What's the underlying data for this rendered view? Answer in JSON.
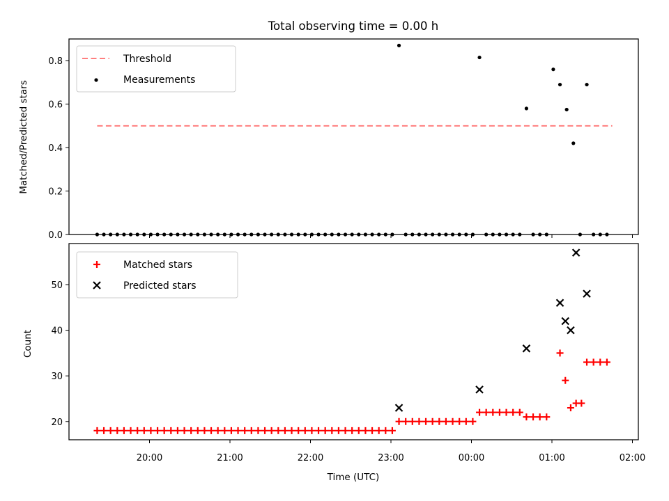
{
  "chart_data": {
    "title": "Total observing time = 0.00 h",
    "xlabel": "Time (UTC)",
    "x_tick_labels": [
      "20:00",
      "21:00",
      "22:00",
      "23:00",
      "00:00",
      "01:00",
      "02:00"
    ],
    "top": {
      "type": "scatter",
      "ylabel": "Matched/Predicted stars",
      "ylim": [
        0,
        0.9
      ],
      "y_ticks": [
        "0.0",
        "0.2",
        "0.4",
        "0.6",
        "0.8"
      ],
      "legend_position": "top-left",
      "threshold": {
        "label": "Threshold",
        "value": 0.5,
        "x_start": "19:21",
        "x_end": "01:45",
        "color": "#ff7f7f"
      },
      "measurements": {
        "label": "Measurements",
        "color": "#000000",
        "points": [
          [
            "19:21",
            0
          ],
          [
            "19:26",
            0
          ],
          [
            "19:31",
            0
          ],
          [
            "19:36",
            0
          ],
          [
            "19:41",
            0
          ],
          [
            "19:46",
            0
          ],
          [
            "19:51",
            0
          ],
          [
            "19:56",
            0
          ],
          [
            "20:01",
            0
          ],
          [
            "20:06",
            0
          ],
          [
            "20:11",
            0
          ],
          [
            "20:16",
            0
          ],
          [
            "20:21",
            0
          ],
          [
            "20:26",
            0
          ],
          [
            "20:31",
            0
          ],
          [
            "20:36",
            0
          ],
          [
            "20:41",
            0
          ],
          [
            "20:46",
            0
          ],
          [
            "20:51",
            0
          ],
          [
            "20:56",
            0
          ],
          [
            "21:01",
            0
          ],
          [
            "21:06",
            0
          ],
          [
            "21:11",
            0
          ],
          [
            "21:16",
            0
          ],
          [
            "21:21",
            0
          ],
          [
            "21:26",
            0
          ],
          [
            "21:31",
            0
          ],
          [
            "21:36",
            0
          ],
          [
            "21:41",
            0
          ],
          [
            "21:46",
            0
          ],
          [
            "21:51",
            0
          ],
          [
            "21:56",
            0
          ],
          [
            "22:01",
            0
          ],
          [
            "22:06",
            0
          ],
          [
            "22:11",
            0
          ],
          [
            "22:16",
            0
          ],
          [
            "22:21",
            0
          ],
          [
            "22:26",
            0
          ],
          [
            "22:31",
            0
          ],
          [
            "22:36",
            0
          ],
          [
            "22:41",
            0
          ],
          [
            "22:46",
            0
          ],
          [
            "22:51",
            0
          ],
          [
            "22:56",
            0
          ],
          [
            "23:01",
            0
          ],
          [
            "23:06",
            0.87
          ],
          [
            "23:11",
            0
          ],
          [
            "23:16",
            0
          ],
          [
            "23:21",
            0
          ],
          [
            "23:26",
            0
          ],
          [
            "23:31",
            0
          ],
          [
            "23:36",
            0
          ],
          [
            "23:41",
            0
          ],
          [
            "23:46",
            0
          ],
          [
            "23:51",
            0
          ],
          [
            "23:56",
            0
          ],
          [
            "00:01",
            0
          ],
          [
            "00:06",
            0.815
          ],
          [
            "00:11",
            0
          ],
          [
            "00:16",
            0
          ],
          [
            "00:21",
            0
          ],
          [
            "00:26",
            0
          ],
          [
            "00:31",
            0
          ],
          [
            "00:36",
            0
          ],
          [
            "00:41",
            0.58
          ],
          [
            "00:46",
            0
          ],
          [
            "00:51",
            0
          ],
          [
            "00:56",
            0
          ],
          [
            "01:01",
            0.76
          ],
          [
            "01:06",
            0.69
          ],
          [
            "01:11",
            0.575
          ],
          [
            "01:16",
            0.42
          ],
          [
            "01:21",
            0
          ],
          [
            "01:26",
            0.69
          ],
          [
            "01:31",
            0
          ],
          [
            "01:36",
            0
          ],
          [
            "01:41",
            0
          ]
        ]
      }
    },
    "bottom": {
      "type": "scatter",
      "ylabel": "Count",
      "ylim": [
        16,
        59
      ],
      "y_ticks": [
        "20",
        "30",
        "40",
        "50"
      ],
      "legend_position": "top-left",
      "matched": {
        "label": "Matched stars",
        "color": "#ff0000",
        "points": [
          [
            "19:21",
            18
          ],
          [
            "19:26",
            18
          ],
          [
            "19:31",
            18
          ],
          [
            "19:36",
            18
          ],
          [
            "19:41",
            18
          ],
          [
            "19:46",
            18
          ],
          [
            "19:51",
            18
          ],
          [
            "19:56",
            18
          ],
          [
            "20:01",
            18
          ],
          [
            "20:06",
            18
          ],
          [
            "20:11",
            18
          ],
          [
            "20:16",
            18
          ],
          [
            "20:21",
            18
          ],
          [
            "20:26",
            18
          ],
          [
            "20:31",
            18
          ],
          [
            "20:36",
            18
          ],
          [
            "20:41",
            18
          ],
          [
            "20:46",
            18
          ],
          [
            "20:51",
            18
          ],
          [
            "20:56",
            18
          ],
          [
            "21:01",
            18
          ],
          [
            "21:06",
            18
          ],
          [
            "21:11",
            18
          ],
          [
            "21:16",
            18
          ],
          [
            "21:21",
            18
          ],
          [
            "21:26",
            18
          ],
          [
            "21:31",
            18
          ],
          [
            "21:36",
            18
          ],
          [
            "21:41",
            18
          ],
          [
            "21:46",
            18
          ],
          [
            "21:51",
            18
          ],
          [
            "21:56",
            18
          ],
          [
            "22:01",
            18
          ],
          [
            "22:06",
            18
          ],
          [
            "22:11",
            18
          ],
          [
            "22:16",
            18
          ],
          [
            "22:21",
            18
          ],
          [
            "22:26",
            18
          ],
          [
            "22:31",
            18
          ],
          [
            "22:36",
            18
          ],
          [
            "22:41",
            18
          ],
          [
            "22:46",
            18
          ],
          [
            "22:51",
            18
          ],
          [
            "22:56",
            18
          ],
          [
            "23:01",
            18
          ],
          [
            "23:06",
            20
          ],
          [
            "23:11",
            20
          ],
          [
            "23:16",
            20
          ],
          [
            "23:21",
            20
          ],
          [
            "23:26",
            20
          ],
          [
            "23:31",
            20
          ],
          [
            "23:36",
            20
          ],
          [
            "23:41",
            20
          ],
          [
            "23:46",
            20
          ],
          [
            "23:51",
            20
          ],
          [
            "23:56",
            20
          ],
          [
            "00:01",
            20
          ],
          [
            "00:06",
            22
          ],
          [
            "00:11",
            22
          ],
          [
            "00:16",
            22
          ],
          [
            "00:21",
            22
          ],
          [
            "00:26",
            22
          ],
          [
            "00:31",
            22
          ],
          [
            "00:36",
            22
          ],
          [
            "00:41",
            21
          ],
          [
            "00:46",
            21
          ],
          [
            "00:51",
            21
          ],
          [
            "00:56",
            21
          ],
          [
            "01:06",
            35
          ],
          [
            "01:10",
            29
          ],
          [
            "01:14",
            23
          ],
          [
            "01:18",
            24
          ],
          [
            "01:22",
            24
          ],
          [
            "01:26",
            33
          ],
          [
            "01:31",
            33
          ],
          [
            "01:36",
            33
          ],
          [
            "01:41",
            33
          ]
        ]
      },
      "predicted": {
        "label": "Predicted stars",
        "color": "#000000",
        "points": [
          [
            "23:06",
            23
          ],
          [
            "00:06",
            27
          ],
          [
            "00:41",
            36
          ],
          [
            "01:06",
            46
          ],
          [
            "01:10",
            42
          ],
          [
            "01:14",
            40
          ],
          [
            "01:18",
            57
          ],
          [
            "01:26",
            48
          ]
        ]
      }
    }
  }
}
